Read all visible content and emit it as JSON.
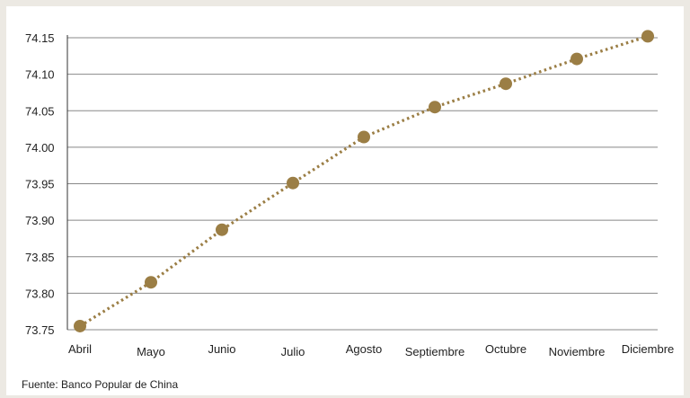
{
  "chart_data": {
    "type": "line",
    "categories": [
      "Abril",
      "Mayo",
      "Junio",
      "Julio",
      "Agosto",
      "Septiembre",
      "Octubre",
      "Noviembre",
      "Diciembre"
    ],
    "series": [
      {
        "values": [
          73.755,
          73.815,
          73.887,
          73.951,
          74.014,
          74.055,
          74.087,
          74.121,
          74.152
        ],
        "color": "#9b7e45",
        "line_style": "dotted",
        "marker": "circle"
      }
    ],
    "ylim": [
      73.75,
      74.15
    ],
    "yticks": [
      "73.75",
      "73.80",
      "73.85",
      "73.90",
      "73.95",
      "74.00",
      "74.05",
      "74.10",
      "74.15"
    ],
    "ytick_values": [
      73.75,
      73.8,
      73.85,
      73.9,
      73.95,
      74.0,
      74.05,
      74.1,
      74.15
    ],
    "grid": true,
    "title": "",
    "xlabel": "",
    "ylabel": ""
  },
  "source_note": "Fuente: Banco Popular de China",
  "colors": {
    "background": "#ece9e3",
    "panel": "#ffffff",
    "gridline": "#888888",
    "series": "#9b7e45"
  }
}
